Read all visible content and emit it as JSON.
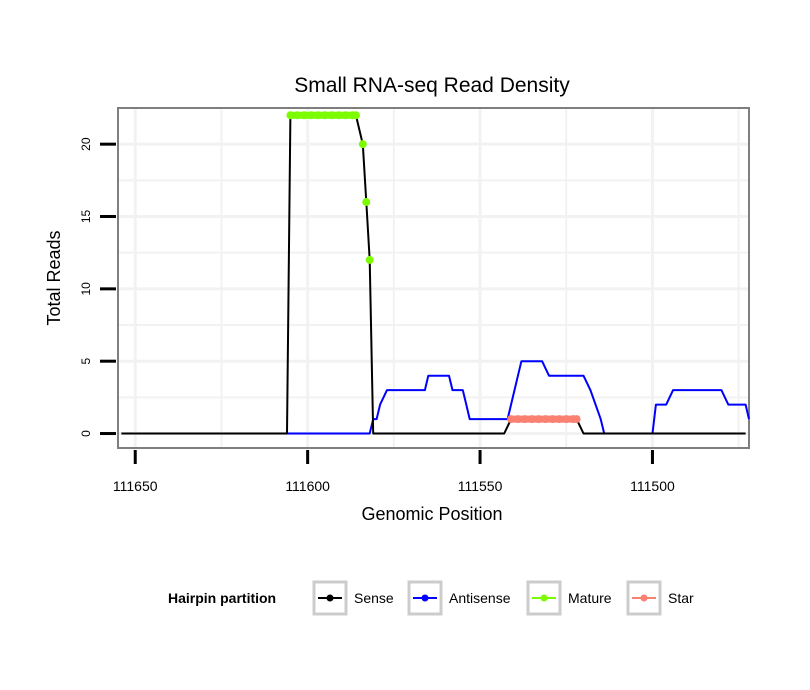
{
  "chart_data": {
    "type": "line",
    "title": "Small RNA-seq Read Density",
    "xlabel": "Genomic Position",
    "ylabel": "Total Reads",
    "xlim": [
      111655,
      111472
    ],
    "x_reversed": true,
    "ylim": [
      -1,
      22.5
    ],
    "xticks": [
      111650,
      111600,
      111550,
      111500
    ],
    "yticks": [
      0,
      5,
      10,
      15,
      20
    ],
    "grid": true,
    "legend": {
      "title": "Hairpin partition",
      "position": "bottom",
      "entries": [
        {
          "name": "Sense",
          "color": "#000000"
        },
        {
          "name": "Antisense",
          "color": "#0000ff"
        },
        {
          "name": "Mature",
          "color": "#7cfc00"
        },
        {
          "name": "Star",
          "color": "#fa8072"
        }
      ]
    },
    "series": [
      {
        "name": "Antisense",
        "color": "#0000ff",
        "points": [
          [
            111645,
            0
          ],
          [
            111582,
            0
          ],
          [
            111581,
            1
          ],
          [
            111580,
            1
          ],
          [
            111579,
            2
          ],
          [
            111577,
            3
          ],
          [
            111566,
            3
          ],
          [
            111565,
            4
          ],
          [
            111559,
            4
          ],
          [
            111558,
            3
          ],
          [
            111555,
            3
          ],
          [
            111554,
            2
          ],
          [
            111553,
            1
          ],
          [
            111542,
            1
          ],
          [
            111540,
            3
          ],
          [
            111538,
            5
          ],
          [
            111532,
            5
          ],
          [
            111530,
            4
          ],
          [
            111520,
            4
          ],
          [
            111518,
            3
          ],
          [
            111515,
            1
          ],
          [
            111514,
            0
          ],
          [
            111500,
            0
          ],
          [
            111499,
            2
          ],
          [
            111496,
            2
          ],
          [
            111494,
            3
          ],
          [
            111480,
            3
          ],
          [
            111478,
            2
          ],
          [
            111473,
            2
          ],
          [
            111472,
            1
          ]
        ]
      },
      {
        "name": "Sense",
        "color": "#000000",
        "points": [
          [
            111654,
            0
          ],
          [
            111606,
            0
          ],
          [
            111605,
            22
          ],
          [
            111586,
            22
          ],
          [
            111584,
            20
          ],
          [
            111583,
            16
          ],
          [
            111582,
            12
          ],
          [
            111581,
            0
          ],
          [
            111543,
            0
          ],
          [
            111541,
            1
          ],
          [
            111522,
            1
          ],
          [
            111520,
            0
          ],
          [
            111473,
            0
          ]
        ]
      },
      {
        "name": "Mature",
        "color": "#7cfc00",
        "line_points": [
          [
            111605,
            22
          ],
          [
            111586,
            22
          ]
        ],
        "markers": [
          [
            111605,
            22
          ],
          [
            111603,
            22
          ],
          [
            111601,
            22
          ],
          [
            111599,
            22
          ],
          [
            111597,
            22
          ],
          [
            111595,
            22
          ],
          [
            111593,
            22
          ],
          [
            111591,
            22
          ],
          [
            111589,
            22
          ],
          [
            111587,
            22
          ],
          [
            111586,
            22
          ],
          [
            111584,
            20
          ],
          [
            111583,
            16
          ],
          [
            111582,
            12
          ]
        ]
      },
      {
        "name": "Star",
        "color": "#fa8072",
        "line_points": [
          [
            111541,
            1
          ],
          [
            111522,
            1
          ]
        ],
        "markers": [
          [
            111541,
            1
          ],
          [
            111539,
            1
          ],
          [
            111537,
            1
          ],
          [
            111535,
            1
          ],
          [
            111533,
            1
          ],
          [
            111531,
            1
          ],
          [
            111529,
            1
          ],
          [
            111527,
            1
          ],
          [
            111525,
            1
          ],
          [
            111523,
            1
          ],
          [
            111522,
            1
          ]
        ]
      }
    ]
  }
}
